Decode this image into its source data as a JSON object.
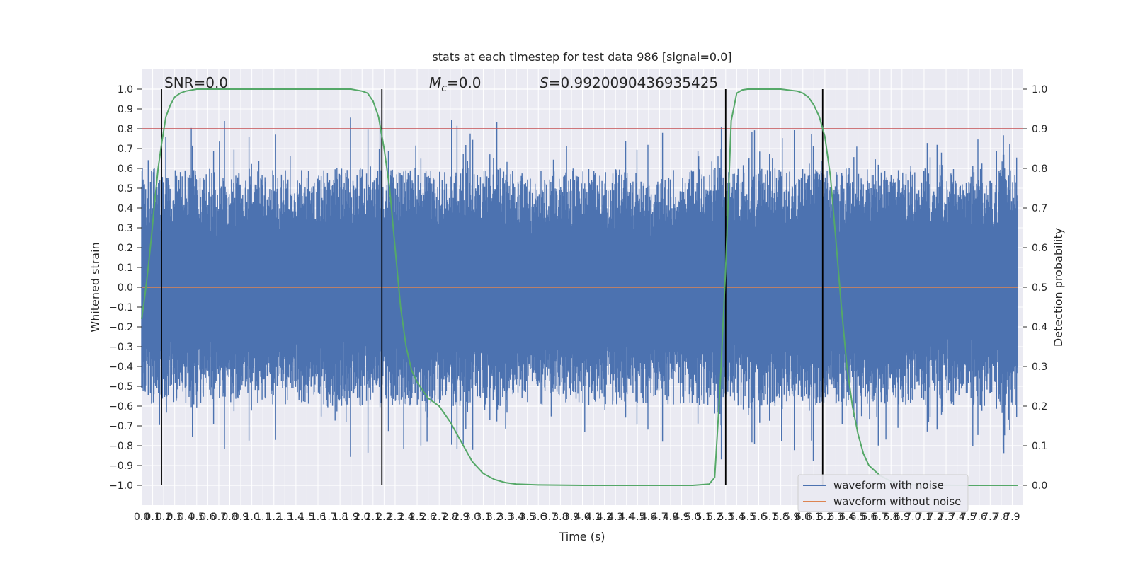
{
  "chart_data": {
    "type": "line",
    "title": "stats at each timestep for test data 986 [signal=0.0]",
    "xlabel": "Time (s)",
    "ylabel": "Whitened strain",
    "y2label": "Detection probability",
    "xlim": [
      0.0,
      8.0
    ],
    "ylim": [
      -1.1,
      1.1
    ],
    "y2lim": [
      -0.05,
      1.05
    ],
    "x_ticks": [
      0.0,
      0.1,
      0.2,
      0.3,
      0.4,
      0.5,
      0.6,
      0.7,
      0.8,
      0.9,
      1.0,
      1.1,
      1.2,
      1.3,
      1.4,
      1.5,
      1.6,
      1.7,
      1.8,
      1.9,
      2.0,
      2.1,
      2.2,
      2.3,
      2.4,
      2.5,
      2.6,
      2.7,
      2.8,
      2.9,
      3.0,
      3.1,
      3.2,
      3.3,
      3.4,
      3.5,
      3.6,
      3.7,
      3.8,
      3.9,
      4.0,
      4.1,
      4.2,
      4.3,
      4.4,
      4.5,
      4.6,
      4.7,
      4.8,
      4.9,
      5.0,
      5.1,
      5.2,
      5.3,
      5.4,
      5.5,
      5.6,
      5.7,
      5.8,
      5.9,
      6.0,
      6.1,
      6.2,
      6.3,
      6.4,
      6.5,
      6.6,
      6.7,
      6.8,
      6.9,
      7.0,
      7.1,
      7.2,
      7.3,
      7.4,
      7.5,
      7.6,
      7.7,
      7.8,
      7.9
    ],
    "y_ticks": [
      1.0,
      0.9,
      0.8,
      0.7,
      0.6,
      0.5,
      0.4,
      0.3,
      0.2,
      0.1,
      0.0,
      -0.1,
      -0.2,
      -0.3,
      -0.4,
      -0.5,
      -0.6,
      -0.7,
      -0.8,
      -0.9,
      -1.0
    ],
    "y2_ticks": [
      1.0,
      0.9,
      0.8,
      0.7,
      0.6,
      0.5,
      0.4,
      0.3,
      0.2,
      0.1,
      0.0
    ],
    "threshold": 0.8,
    "vlines": [
      0.18,
      2.18,
      5.3,
      6.18
    ],
    "annotations": [
      "SNR=0.0",
      "Mc=0.0",
      "S=0.9920090436935425"
    ],
    "legend_position": "lower-right",
    "series": [
      {
        "name": "waveform with noise",
        "color": "#4c72b0",
        "kind": "noise",
        "amplitude_range": [
          -0.97,
          1.0
        ]
      },
      {
        "name": "waveform without noise",
        "color": "#dd8452",
        "kind": "flat",
        "value": 0.0
      },
      {
        "color": "#55a868",
        "axis": "y2",
        "x": [
          0.0,
          0.03,
          0.06,
          0.09,
          0.12,
          0.15,
          0.18,
          0.22,
          0.26,
          0.3,
          0.35,
          0.4,
          0.5,
          0.6,
          0.8,
          1.0,
          1.5,
          1.9,
          2.0,
          2.05,
          2.1,
          2.15,
          2.2,
          2.25,
          2.3,
          2.35,
          2.4,
          2.45,
          2.5,
          2.55,
          2.6,
          2.7,
          2.8,
          2.9,
          3.0,
          3.1,
          3.2,
          3.3,
          3.4,
          3.6,
          4.0,
          5.0,
          5.15,
          5.2,
          5.25,
          5.3,
          5.35,
          5.4,
          5.45,
          5.5,
          5.6,
          5.8,
          5.95,
          6.0,
          6.05,
          6.1,
          6.15,
          6.2,
          6.25,
          6.3,
          6.35,
          6.4,
          6.45,
          6.5,
          6.55,
          6.6,
          6.7,
          6.8,
          6.9,
          7.0,
          7.4,
          7.95
        ],
        "y": [
          0.42,
          0.48,
          0.55,
          0.63,
          0.72,
          0.8,
          0.86,
          0.93,
          0.96,
          0.98,
          0.99,
          0.995,
          1.0,
          1.0,
          1.0,
          1.0,
          1.0,
          1.0,
          0.995,
          0.99,
          0.97,
          0.93,
          0.85,
          0.75,
          0.6,
          0.45,
          0.35,
          0.29,
          0.26,
          0.24,
          0.22,
          0.2,
          0.16,
          0.11,
          0.06,
          0.03,
          0.015,
          0.007,
          0.003,
          0.001,
          0.0,
          0.0,
          0.003,
          0.02,
          0.25,
          0.55,
          0.92,
          0.99,
          0.998,
          1.0,
          1.0,
          1.0,
          0.995,
          0.99,
          0.98,
          0.96,
          0.93,
          0.88,
          0.78,
          0.62,
          0.45,
          0.3,
          0.2,
          0.13,
          0.08,
          0.05,
          0.025,
          0.01,
          0.004,
          0.001,
          0.0,
          0.0
        ]
      }
    ]
  }
}
